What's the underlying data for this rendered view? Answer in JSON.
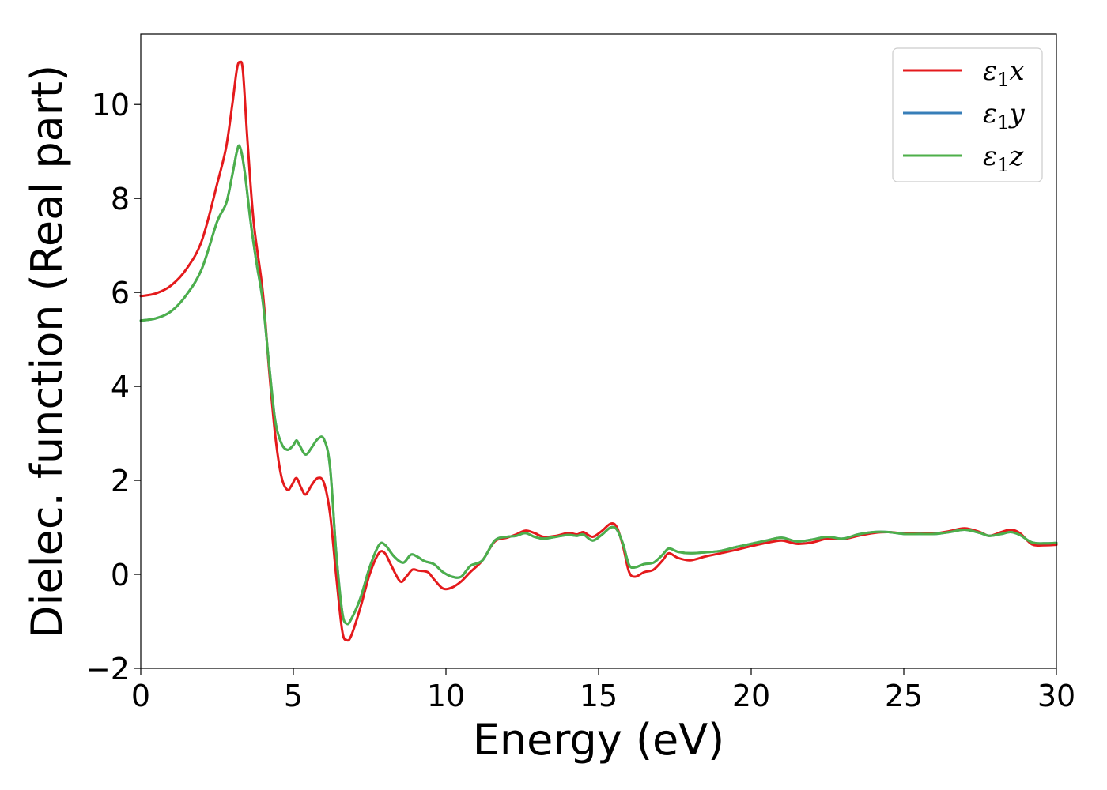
{
  "chart_data": {
    "type": "line",
    "title": "",
    "xlabel": "Energy (eV)",
    "ylabel": "Dielec. function (Real part)",
    "xlim": [
      0,
      30
    ],
    "ylim": [
      -2,
      11.5
    ],
    "xticks": [
      0,
      5,
      10,
      15,
      20,
      25,
      30
    ],
    "xtick_labels": [
      "0",
      "5",
      "10",
      "15",
      "20",
      "25",
      "30"
    ],
    "yticks": [
      -2,
      0,
      2,
      4,
      6,
      8,
      10
    ],
    "ytick_labels": [
      "−2",
      "0",
      "2",
      "4",
      "6",
      "8",
      "10"
    ],
    "grid": false,
    "legend_placement": "top-right",
    "series": [
      {
        "name": "ε₁x",
        "legend_parts": [
          "ε",
          "1",
          "x"
        ],
        "color": "#e41a1c",
        "points": [
          [
            0,
            5.92
          ],
          [
            0.5,
            5.98
          ],
          [
            1,
            6.15
          ],
          [
            1.5,
            6.5
          ],
          [
            2,
            7.1
          ],
          [
            2.5,
            8.3
          ],
          [
            2.8,
            9.1
          ],
          [
            3.0,
            10.0
          ],
          [
            3.15,
            10.75
          ],
          [
            3.25,
            10.9
          ],
          [
            3.35,
            10.7
          ],
          [
            3.5,
            9.2
          ],
          [
            3.7,
            7.5
          ],
          [
            4.0,
            6.0
          ],
          [
            4.2,
            4.4
          ],
          [
            4.4,
            3.0
          ],
          [
            4.6,
            2.1
          ],
          [
            4.8,
            1.8
          ],
          [
            4.95,
            1.9
          ],
          [
            5.1,
            2.05
          ],
          [
            5.25,
            1.85
          ],
          [
            5.4,
            1.7
          ],
          [
            5.6,
            1.9
          ],
          [
            5.8,
            2.05
          ],
          [
            6.0,
            1.95
          ],
          [
            6.2,
            1.3
          ],
          [
            6.4,
            0.0
          ],
          [
            6.6,
            -1.2
          ],
          [
            6.75,
            -1.4
          ],
          [
            6.9,
            -1.3
          ],
          [
            7.2,
            -0.7
          ],
          [
            7.5,
            0.0
          ],
          [
            7.8,
            0.45
          ],
          [
            8.0,
            0.45
          ],
          [
            8.2,
            0.2
          ],
          [
            8.5,
            -0.15
          ],
          [
            8.7,
            -0.05
          ],
          [
            8.9,
            0.1
          ],
          [
            9.1,
            0.08
          ],
          [
            9.4,
            0.05
          ],
          [
            9.6,
            -0.1
          ],
          [
            9.9,
            -0.3
          ],
          [
            10.2,
            -0.28
          ],
          [
            10.5,
            -0.15
          ],
          [
            10.8,
            0.05
          ],
          [
            11.2,
            0.3
          ],
          [
            11.6,
            0.7
          ],
          [
            12.0,
            0.78
          ],
          [
            12.3,
            0.85
          ],
          [
            12.6,
            0.93
          ],
          [
            12.9,
            0.88
          ],
          [
            13.2,
            0.8
          ],
          [
            13.6,
            0.82
          ],
          [
            14.0,
            0.88
          ],
          [
            14.3,
            0.85
          ],
          [
            14.5,
            0.9
          ],
          [
            14.8,
            0.8
          ],
          [
            15.1,
            0.92
          ],
          [
            15.4,
            1.08
          ],
          [
            15.6,
            1.0
          ],
          [
            15.8,
            0.6
          ],
          [
            16.0,
            0.05
          ],
          [
            16.2,
            -0.05
          ],
          [
            16.5,
            0.05
          ],
          [
            16.8,
            0.1
          ],
          [
            17.1,
            0.3
          ],
          [
            17.3,
            0.45
          ],
          [
            17.6,
            0.35
          ],
          [
            18.0,
            0.3
          ],
          [
            18.5,
            0.38
          ],
          [
            19.0,
            0.45
          ],
          [
            19.5,
            0.52
          ],
          [
            20.0,
            0.6
          ],
          [
            20.5,
            0.67
          ],
          [
            21.0,
            0.72
          ],
          [
            21.5,
            0.65
          ],
          [
            22.0,
            0.68
          ],
          [
            22.5,
            0.76
          ],
          [
            23.0,
            0.75
          ],
          [
            23.5,
            0.82
          ],
          [
            24.0,
            0.88
          ],
          [
            24.5,
            0.9
          ],
          [
            25.0,
            0.87
          ],
          [
            25.5,
            0.88
          ],
          [
            26.0,
            0.87
          ],
          [
            26.5,
            0.92
          ],
          [
            27.0,
            0.98
          ],
          [
            27.5,
            0.9
          ],
          [
            27.8,
            0.82
          ],
          [
            28.2,
            0.9
          ],
          [
            28.5,
            0.95
          ],
          [
            28.8,
            0.88
          ],
          [
            29.2,
            0.64
          ],
          [
            29.6,
            0.62
          ],
          [
            30.0,
            0.63
          ]
        ]
      },
      {
        "name": "ε₁y",
        "legend_parts": [
          "ε",
          "1",
          "y"
        ],
        "color": "#377eb8",
        "points": [
          [
            0,
            5.4
          ],
          [
            0.5,
            5.45
          ],
          [
            1,
            5.6
          ],
          [
            1.5,
            5.95
          ],
          [
            2,
            6.5
          ],
          [
            2.5,
            7.5
          ],
          [
            2.8,
            7.9
          ],
          [
            3.0,
            8.5
          ],
          [
            3.15,
            9.0
          ],
          [
            3.25,
            9.1
          ],
          [
            3.4,
            8.6
          ],
          [
            3.6,
            7.5
          ],
          [
            3.8,
            6.6
          ],
          [
            4.0,
            5.8
          ],
          [
            4.2,
            4.5
          ],
          [
            4.4,
            3.3
          ],
          [
            4.6,
            2.8
          ],
          [
            4.8,
            2.65
          ],
          [
            5.0,
            2.75
          ],
          [
            5.1,
            2.85
          ],
          [
            5.2,
            2.75
          ],
          [
            5.4,
            2.55
          ],
          [
            5.6,
            2.7
          ],
          [
            5.8,
            2.88
          ],
          [
            6.0,
            2.88
          ],
          [
            6.2,
            2.3
          ],
          [
            6.4,
            0.5
          ],
          [
            6.6,
            -0.8
          ],
          [
            6.75,
            -1.05
          ],
          [
            6.9,
            -0.95
          ],
          [
            7.2,
            -0.5
          ],
          [
            7.5,
            0.15
          ],
          [
            7.8,
            0.62
          ],
          [
            8.0,
            0.63
          ],
          [
            8.3,
            0.38
          ],
          [
            8.6,
            0.25
          ],
          [
            8.85,
            0.42
          ],
          [
            9.05,
            0.38
          ],
          [
            9.3,
            0.28
          ],
          [
            9.6,
            0.22
          ],
          [
            9.9,
            0.05
          ],
          [
            10.2,
            -0.05
          ],
          [
            10.5,
            -0.05
          ],
          [
            10.8,
            0.18
          ],
          [
            11.2,
            0.3
          ],
          [
            11.6,
            0.72
          ],
          [
            12.0,
            0.8
          ],
          [
            12.3,
            0.82
          ],
          [
            12.6,
            0.88
          ],
          [
            12.9,
            0.8
          ],
          [
            13.2,
            0.76
          ],
          [
            13.6,
            0.8
          ],
          [
            14.0,
            0.84
          ],
          [
            14.3,
            0.82
          ],
          [
            14.5,
            0.85
          ],
          [
            14.8,
            0.72
          ],
          [
            15.1,
            0.84
          ],
          [
            15.4,
            1.0
          ],
          [
            15.6,
            0.95
          ],
          [
            15.8,
            0.65
          ],
          [
            16.0,
            0.2
          ],
          [
            16.2,
            0.15
          ],
          [
            16.5,
            0.22
          ],
          [
            16.8,
            0.25
          ],
          [
            17.1,
            0.42
          ],
          [
            17.3,
            0.55
          ],
          [
            17.6,
            0.48
          ],
          [
            18.0,
            0.45
          ],
          [
            18.5,
            0.47
          ],
          [
            19.0,
            0.5
          ],
          [
            19.5,
            0.58
          ],
          [
            20.0,
            0.65
          ],
          [
            20.5,
            0.72
          ],
          [
            21.0,
            0.78
          ],
          [
            21.5,
            0.7
          ],
          [
            22.0,
            0.74
          ],
          [
            22.5,
            0.8
          ],
          [
            23.0,
            0.76
          ],
          [
            23.5,
            0.85
          ],
          [
            24.0,
            0.9
          ],
          [
            24.5,
            0.9
          ],
          [
            25.0,
            0.86
          ],
          [
            25.5,
            0.86
          ],
          [
            26.0,
            0.86
          ],
          [
            26.5,
            0.9
          ],
          [
            27.0,
            0.95
          ],
          [
            27.5,
            0.88
          ],
          [
            27.8,
            0.82
          ],
          [
            28.2,
            0.86
          ],
          [
            28.5,
            0.9
          ],
          [
            28.8,
            0.84
          ],
          [
            29.2,
            0.68
          ],
          [
            29.6,
            0.66
          ],
          [
            30.0,
            0.67
          ]
        ]
      },
      {
        "name": "ε₁z",
        "legend_parts": [
          "ε",
          "1",
          "z"
        ],
        "color": "#4daf4a",
        "points": [
          [
            0,
            5.4
          ],
          [
            0.5,
            5.45
          ],
          [
            1,
            5.6
          ],
          [
            1.5,
            5.95
          ],
          [
            2,
            6.5
          ],
          [
            2.5,
            7.5
          ],
          [
            2.8,
            7.9
          ],
          [
            3.0,
            8.5
          ],
          [
            3.15,
            9.0
          ],
          [
            3.25,
            9.1
          ],
          [
            3.4,
            8.6
          ],
          [
            3.6,
            7.5
          ],
          [
            3.8,
            6.6
          ],
          [
            4.0,
            5.8
          ],
          [
            4.2,
            4.5
          ],
          [
            4.4,
            3.3
          ],
          [
            4.6,
            2.8
          ],
          [
            4.8,
            2.65
          ],
          [
            5.0,
            2.75
          ],
          [
            5.1,
            2.85
          ],
          [
            5.2,
            2.75
          ],
          [
            5.4,
            2.55
          ],
          [
            5.6,
            2.7
          ],
          [
            5.8,
            2.88
          ],
          [
            6.0,
            2.88
          ],
          [
            6.2,
            2.3
          ],
          [
            6.4,
            0.5
          ],
          [
            6.6,
            -0.8
          ],
          [
            6.75,
            -1.05
          ],
          [
            6.9,
            -0.95
          ],
          [
            7.2,
            -0.5
          ],
          [
            7.5,
            0.15
          ],
          [
            7.8,
            0.62
          ],
          [
            8.0,
            0.63
          ],
          [
            8.3,
            0.38
          ],
          [
            8.6,
            0.25
          ],
          [
            8.85,
            0.42
          ],
          [
            9.05,
            0.38
          ],
          [
            9.3,
            0.28
          ],
          [
            9.6,
            0.22
          ],
          [
            9.9,
            0.05
          ],
          [
            10.2,
            -0.05
          ],
          [
            10.5,
            -0.05
          ],
          [
            10.8,
            0.18
          ],
          [
            11.2,
            0.3
          ],
          [
            11.6,
            0.72
          ],
          [
            12.0,
            0.8
          ],
          [
            12.3,
            0.82
          ],
          [
            12.6,
            0.88
          ],
          [
            12.9,
            0.8
          ],
          [
            13.2,
            0.76
          ],
          [
            13.6,
            0.8
          ],
          [
            14.0,
            0.84
          ],
          [
            14.3,
            0.82
          ],
          [
            14.5,
            0.85
          ],
          [
            14.8,
            0.72
          ],
          [
            15.1,
            0.84
          ],
          [
            15.4,
            1.0
          ],
          [
            15.6,
            0.95
          ],
          [
            15.8,
            0.65
          ],
          [
            16.0,
            0.2
          ],
          [
            16.2,
            0.15
          ],
          [
            16.5,
            0.22
          ],
          [
            16.8,
            0.25
          ],
          [
            17.1,
            0.42
          ],
          [
            17.3,
            0.55
          ],
          [
            17.6,
            0.48
          ],
          [
            18.0,
            0.45
          ],
          [
            18.5,
            0.47
          ],
          [
            19.0,
            0.5
          ],
          [
            19.5,
            0.58
          ],
          [
            20.0,
            0.65
          ],
          [
            20.5,
            0.72
          ],
          [
            21.0,
            0.78
          ],
          [
            21.5,
            0.7
          ],
          [
            22.0,
            0.74
          ],
          [
            22.5,
            0.8
          ],
          [
            23.0,
            0.76
          ],
          [
            23.5,
            0.85
          ],
          [
            24.0,
            0.9
          ],
          [
            24.5,
            0.9
          ],
          [
            25.0,
            0.86
          ],
          [
            25.5,
            0.86
          ],
          [
            26.0,
            0.86
          ],
          [
            26.5,
            0.9
          ],
          [
            27.0,
            0.95
          ],
          [
            27.5,
            0.88
          ],
          [
            27.8,
            0.82
          ],
          [
            28.2,
            0.86
          ],
          [
            28.5,
            0.9
          ],
          [
            28.8,
            0.84
          ],
          [
            29.2,
            0.68
          ],
          [
            29.6,
            0.66
          ],
          [
            30.0,
            0.67
          ]
        ]
      }
    ]
  }
}
